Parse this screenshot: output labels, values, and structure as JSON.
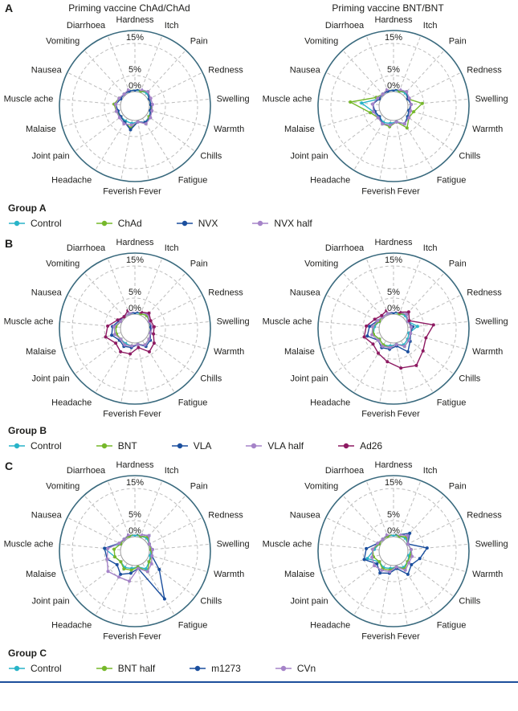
{
  "figure": {
    "column_titles": [
      "Priming vaccine ChAd/ChAd",
      "Priming vaccine BNT/BNT"
    ],
    "styles": {
      "frame_color": "#3a6a7e",
      "grid_color": "#bdbdbd",
      "zero_circle_color": "#9e9e9e",
      "text_color": "#1d1d1b",
      "rule_color": "#1d4f9b"
    },
    "panels": [
      {
        "letter": "A",
        "group_label": "Group A",
        "legend": [
          {
            "name": "Control",
            "color": "#29b4c8"
          },
          {
            "name": "ChAd",
            "color": "#76b82a"
          },
          {
            "name": "NVX",
            "color": "#1b4f9e"
          },
          {
            "name": "NVX half",
            "color": "#a583c8"
          }
        ]
      },
      {
        "letter": "B",
        "group_label": "Group B",
        "legend": [
          {
            "name": "Control",
            "color": "#29b4c8"
          },
          {
            "name": "BNT",
            "color": "#76b82a"
          },
          {
            "name": "VLA",
            "color": "#1b4f9e"
          },
          {
            "name": "VLA half",
            "color": "#a583c8"
          },
          {
            "name": "Ad26",
            "color": "#8e1a62"
          }
        ]
      },
      {
        "letter": "C",
        "group_label": "Group C",
        "legend": [
          {
            "name": "Control",
            "color": "#29b4c8"
          },
          {
            "name": "BNT half",
            "color": "#76b82a"
          },
          {
            "name": "m1273",
            "color": "#1b4f9e"
          },
          {
            "name": "CVn",
            "color": "#a583c8"
          }
        ]
      }
    ]
  },
  "chart_data": [
    {
      "type": "radar",
      "panel": "A",
      "title": "Priming vaccine ChAd/ChAd",
      "axes": [
        "Hardness",
        "Itch",
        "Pain",
        "Redness",
        "Swelling",
        "Warmth",
        "Chills",
        "Fatigue",
        "Fever",
        "Feverish",
        "Headache",
        "Joint pain",
        "Malaise",
        "Muscle ache",
        "Nausea",
        "Vomiting",
        "Diarrhoea"
      ],
      "radial_ticks": [
        "0%",
        "5%",
        "15%"
      ],
      "radial_tick_values": [
        0,
        5,
        15
      ],
      "rmax": 15,
      "series": [
        {
          "name": "Control",
          "color": "#29b4c8",
          "values": [
            0.5,
            0.5,
            1,
            0.5,
            0.5,
            0.5,
            1,
            1.5,
            0.5,
            1,
            1,
            1,
            1,
            1.5,
            0.5,
            0.5,
            0.5
          ]
        },
        {
          "name": "ChAd",
          "color": "#76b82a",
          "values": [
            1,
            0.5,
            1.5,
            0.5,
            0.5,
            1,
            1,
            2,
            0.5,
            2.5,
            1.5,
            1,
            1.5,
            2,
            1,
            0.5,
            1
          ]
        },
        {
          "name": "NVX",
          "color": "#1b4f9e",
          "values": [
            0.5,
            1,
            1.5,
            0.5,
            0.5,
            0.5,
            1.5,
            1.5,
            0.5,
            3,
            1.5,
            1,
            1,
            1.5,
            0.5,
            0.5,
            0.5
          ]
        },
        {
          "name": "NVX half",
          "color": "#a583c8",
          "values": [
            1.5,
            1,
            1.5,
            1,
            1,
            1,
            1.5,
            2,
            0.5,
            1.5,
            2,
            1.5,
            1.5,
            1.5,
            1,
            0.5,
            1
          ]
        }
      ]
    },
    {
      "type": "radar",
      "panel": "A",
      "title": "Priming vaccine BNT/BNT",
      "axes": [
        "Hardness",
        "Itch",
        "Pain",
        "Redness",
        "Swelling",
        "Warmth",
        "Chills",
        "Fatigue",
        "Fever",
        "Feverish",
        "Headache",
        "Joint pain",
        "Malaise",
        "Muscle ache",
        "Nausea",
        "Vomiting",
        "Diarrhoea"
      ],
      "radial_ticks": [
        "0%",
        "5%",
        "15%"
      ],
      "radial_tick_values": [
        0,
        5,
        15
      ],
      "rmax": 15,
      "series": [
        {
          "name": "Control",
          "color": "#29b4c8",
          "values": [
            0.5,
            0.5,
            1,
            0.5,
            1,
            0.5,
            1,
            2,
            0.5,
            1,
            1.5,
            1,
            2,
            5.5,
            0.5,
            0.5,
            0.5
          ]
        },
        {
          "name": "ChAd",
          "color": "#76b82a",
          "values": [
            1,
            0.5,
            1.5,
            0.5,
            4.5,
            2,
            1.5,
            3.5,
            0.5,
            2,
            2,
            1.5,
            3,
            9,
            1.5,
            0.5,
            1
          ]
        },
        {
          "name": "NVX",
          "color": "#1b4f9e",
          "values": [
            0.5,
            1,
            1.5,
            0.5,
            1,
            0.5,
            1,
            2,
            0.5,
            1.5,
            2,
            1,
            1.5,
            2,
            0.5,
            0.5,
            0.5
          ]
        },
        {
          "name": "NVX half",
          "color": "#a583c8",
          "values": [
            1.5,
            1,
            1.5,
            1,
            1,
            1,
            1.5,
            2,
            0.5,
            1.5,
            2,
            1.5,
            2,
            2,
            1,
            0.5,
            1
          ]
        }
      ]
    },
    {
      "type": "radar",
      "panel": "B",
      "axes": [
        "Hardness",
        "Itch",
        "Pain",
        "Redness",
        "Swelling",
        "Warmth",
        "Chills",
        "Fatigue",
        "Fever",
        "Feverish",
        "Headache",
        "Joint pain",
        "Malaise",
        "Muscle ache",
        "Nausea",
        "Vomiting",
        "Diarrhoea"
      ],
      "radial_ticks": [
        "0%",
        "5%",
        "15%"
      ],
      "radial_tick_values": [
        0,
        5,
        15
      ],
      "rmax": 15,
      "series": [
        {
          "name": "Control",
          "color": "#29b4c8",
          "values": [
            0.5,
            0.5,
            1,
            0.5,
            0.5,
            0.5,
            1,
            1.5,
            0.5,
            1,
            1,
            1,
            1.5,
            1.5,
            0.5,
            0.5,
            0.5
          ]
        },
        {
          "name": "BNT",
          "color": "#76b82a",
          "values": [
            1,
            0.5,
            1,
            0.5,
            0.5,
            0.5,
            1,
            1.5,
            0.5,
            1,
            1.5,
            1,
            1.5,
            1.5,
            0.5,
            0.5,
            0.5
          ]
        },
        {
          "name": "VLA",
          "color": "#1b4f9e",
          "values": [
            0.5,
            1,
            1.5,
            0.5,
            0.5,
            0.5,
            1.5,
            2,
            0.5,
            1.5,
            2,
            1.5,
            3,
            2.5,
            1,
            0.5,
            0.5
          ]
        },
        {
          "name": "VLA half",
          "color": "#a583c8",
          "values": [
            1,
            1,
            1.5,
            0.5,
            1,
            0.5,
            1,
            1.5,
            0.5,
            1,
            1.5,
            1,
            2,
            2,
            0.5,
            0.5,
            0.5
          ]
        },
        {
          "name": "Ad26",
          "color": "#8e1a62",
          "values": [
            1.5,
            1,
            2,
            1,
            1.5,
            1.5,
            3,
            4,
            1.5,
            3.5,
            4,
            3,
            5,
            4,
            1.5,
            0.5,
            1.5
          ]
        }
      ]
    },
    {
      "type": "radar",
      "panel": "B",
      "axes": [
        "Hardness",
        "Itch",
        "Pain",
        "Redness",
        "Swelling",
        "Warmth",
        "Chills",
        "Fatigue",
        "Fever",
        "Feverish",
        "Headache",
        "Joint pain",
        "Malaise",
        "Muscle ache",
        "Nausea",
        "Vomiting",
        "Diarrhoea"
      ],
      "radial_ticks": [
        "0%",
        "5%",
        "15%"
      ],
      "radial_tick_values": [
        0,
        5,
        15
      ],
      "rmax": 15,
      "series": [
        {
          "name": "Control",
          "color": "#29b4c8",
          "values": [
            0.5,
            0.5,
            1,
            0.5,
            3,
            0.5,
            1,
            1.5,
            0.5,
            1,
            1.5,
            1,
            2,
            1.5,
            0.5,
            0.5,
            0.5
          ]
        },
        {
          "name": "BNT",
          "color": "#76b82a",
          "values": [
            1,
            0.5,
            1.5,
            0.5,
            1,
            1,
            1.5,
            2,
            0.5,
            1.5,
            1.5,
            1,
            2,
            2,
            0.5,
            0.5,
            0.5
          ]
        },
        {
          "name": "VLA",
          "color": "#1b4f9e",
          "values": [
            0.5,
            1,
            1.5,
            0.5,
            1.5,
            1,
            2,
            4,
            1,
            2,
            2.5,
            1.5,
            4,
            3,
            1,
            0.5,
            0.5
          ]
        },
        {
          "name": "VLA half",
          "color": "#a583c8",
          "values": [
            1,
            1,
            1.5,
            0.5,
            1,
            1,
            1.5,
            2,
            0.5,
            1.5,
            2,
            1.5,
            2.5,
            2,
            1,
            0.5,
            0.5
          ]
        },
        {
          "name": "Ad26",
          "color": "#8e1a62",
          "values": [
            1.5,
            1,
            2.5,
            1,
            8,
            6,
            7,
            9,
            8,
            6,
            4.5,
            3.5,
            5,
            4,
            2,
            1,
            1.5
          ]
        }
      ]
    },
    {
      "type": "radar",
      "panel": "C",
      "axes": [
        "Hardness",
        "Itch",
        "Pain",
        "Redness",
        "Swelling",
        "Warmth",
        "Chills",
        "Fatigue",
        "Fever",
        "Feverish",
        "Headache",
        "Joint pain",
        "Malaise",
        "Muscle ache",
        "Nausea",
        "Vomiting",
        "Diarrhoea"
      ],
      "radial_ticks": [
        "0%",
        "5%",
        "15%"
      ],
      "radial_tick_values": [
        0,
        5,
        15
      ],
      "rmax": 15,
      "series": [
        {
          "name": "Control",
          "color": "#29b4c8",
          "values": [
            0.5,
            0.5,
            1,
            0.5,
            0.5,
            0.5,
            1,
            2,
            0.5,
            1,
            1.5,
            1,
            2,
            5,
            0.5,
            0.5,
            0.5
          ]
        },
        {
          "name": "BNT half",
          "color": "#76b82a",
          "values": [
            1,
            0.5,
            1.5,
            0.5,
            0.5,
            1,
            1,
            3,
            0.5,
            1.5,
            2,
            1,
            2,
            2,
            0.5,
            0.5,
            0.5
          ]
        },
        {
          "name": "m1273",
          "color": "#1b4f9e",
          "values": [
            1,
            1,
            2,
            0.5,
            1,
            1,
            5,
            13,
            1,
            2.5,
            4,
            2.5,
            4.5,
            5,
            1,
            0.5,
            1
          ]
        },
        {
          "name": "CVn",
          "color": "#a583c8",
          "values": [
            1.5,
            1,
            2,
            0.5,
            1,
            1,
            2,
            3,
            1,
            5,
            5,
            6,
            4.5,
            4,
            1,
            0.5,
            1
          ]
        }
      ]
    },
    {
      "type": "radar",
      "panel": "C",
      "axes": [
        "Hardness",
        "Itch",
        "Pain",
        "Redness",
        "Swelling",
        "Warmth",
        "Chills",
        "Fatigue",
        "Fever",
        "Feverish",
        "Headache",
        "Joint pain",
        "Malaise",
        "Muscle ache",
        "Nausea",
        "Vomiting",
        "Diarrhoea"
      ],
      "radial_ticks": [
        "0%",
        "5%",
        "15%"
      ],
      "radial_tick_values": [
        0,
        5,
        15
      ],
      "rmax": 15,
      "series": [
        {
          "name": "Control",
          "color": "#29b4c8",
          "values": [
            0.5,
            0.5,
            1,
            0.5,
            1,
            0.5,
            1,
            1.5,
            0.5,
            1,
            1.5,
            1,
            4,
            1.5,
            0.5,
            0.5,
            0.5
          ]
        },
        {
          "name": "BNT half",
          "color": "#76b82a",
          "values": [
            1,
            0.5,
            1.5,
            0.5,
            1,
            1,
            1,
            2,
            0.5,
            1.5,
            2,
            1,
            2,
            2,
            0.5,
            0.5,
            0.5
          ]
        },
        {
          "name": "m1273",
          "color": "#1b4f9e",
          "values": [
            1,
            1,
            3,
            0.5,
            6,
            4,
            2.5,
            4,
            1,
            2.5,
            3.5,
            2,
            5,
            4,
            1,
            0.5,
            1
          ]
        },
        {
          "name": "CVn",
          "color": "#a583c8",
          "values": [
            1.5,
            1,
            2,
            0.5,
            1,
            1.5,
            1.5,
            2.5,
            0.5,
            2,
            2.5,
            3,
            2.5,
            2,
            1,
            0.5,
            1
          ]
        }
      ]
    }
  ]
}
